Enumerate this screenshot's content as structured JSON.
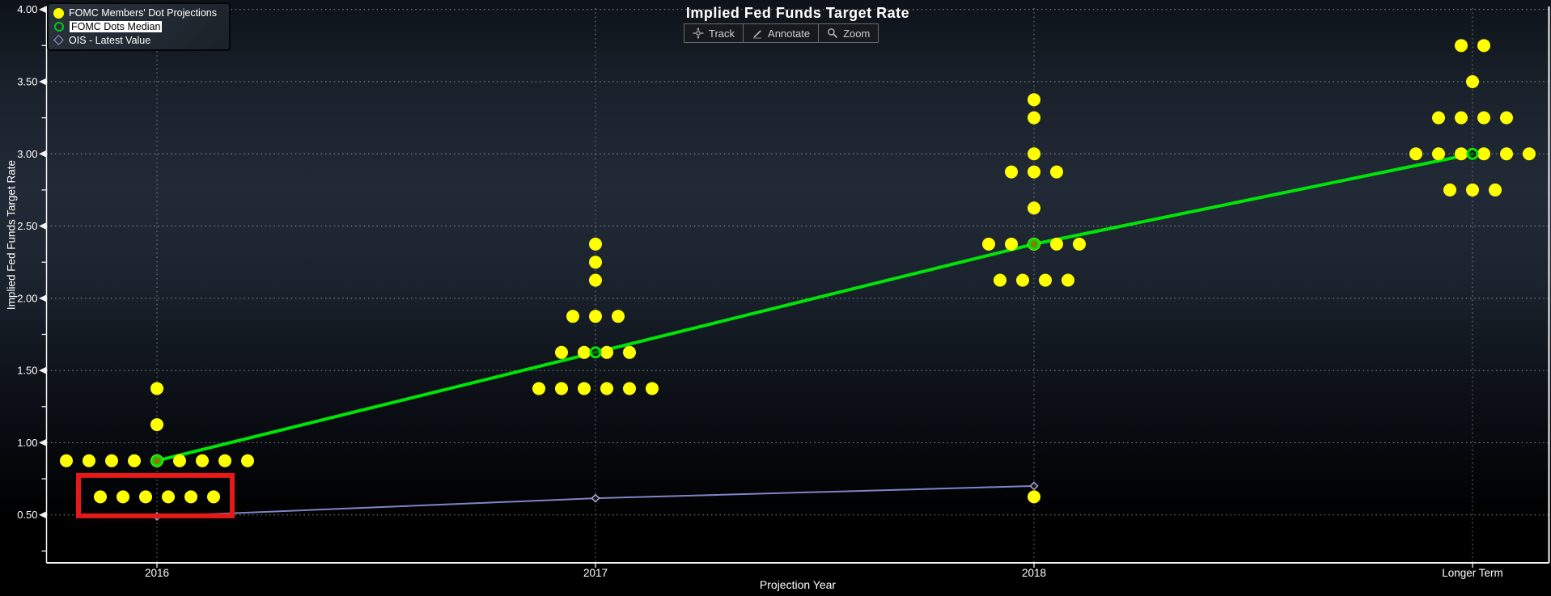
{
  "chart": {
    "title": "Implied Fed Funds Target Rate",
    "toolbar": [
      {
        "id": "track",
        "label": "Track"
      },
      {
        "id": "annotate",
        "label": "Annotate"
      },
      {
        "id": "zoom",
        "label": "Zoom"
      }
    ],
    "legend_items": [
      {
        "label": "FOMC Members' Dot Projections",
        "marker": "yellow-dot",
        "highlighted": false
      },
      {
        "label": "FOMC Dots Median",
        "marker": "green-open-circle",
        "highlighted": true
      },
      {
        "label": "OIS - Latest Value",
        "marker": "purple-open-diamond",
        "highlighted": false
      }
    ],
    "y_axis": {
      "label": "Implied Fed Funds Target Rate"
    },
    "x_axis": {
      "label": "Projection Year"
    },
    "colors": {
      "dots": "#ffff00",
      "median_line": "#00e408",
      "ois_line": "#8084c8",
      "highlight_box": "#e61919",
      "gridline": "#b9bdc2",
      "axis": "#f2f2f2",
      "text": "#ffffff"
    }
  },
  "chart_data": {
    "type": "scatter",
    "title": "Implied Fed Funds Target Rate",
    "xlabel": "Projection Year",
    "ylabel": "Implied Fed Funds Target Rate",
    "categories": [
      "2016",
      "2017",
      "2018",
      "Longer Term"
    ],
    "ylim": [
      0.16,
      4.02
    ],
    "yticks": [
      0.5,
      1.0,
      1.5,
      2.0,
      2.5,
      3.0,
      3.5,
      4.0
    ],
    "y_minor_ticks": [
      0.25,
      0.75,
      1.25,
      1.75,
      2.25,
      2.75,
      3.25,
      3.75
    ],
    "grid": true,
    "legend_position": "top-left",
    "series": [
      {
        "name": "FOMC Members' Dot Projections",
        "style": "dot-rows",
        "color": "#ffff00",
        "rows": {
          "2016": [
            [
              0.625,
              6
            ],
            [
              0.875,
              9
            ],
            [
              1.125,
              1
            ],
            [
              1.375,
              1
            ]
          ],
          "2017": [
            [
              1.375,
              6
            ],
            [
              1.625,
              4
            ],
            [
              1.875,
              3
            ],
            [
              2.125,
              1
            ],
            [
              2.25,
              1
            ],
            [
              2.375,
              1
            ]
          ],
          "2018": [
            [
              0.625,
              1
            ],
            [
              2.125,
              4
            ],
            [
              2.375,
              5
            ],
            [
              2.625,
              1
            ],
            [
              2.875,
              3
            ],
            [
              3.0,
              1
            ],
            [
              3.25,
              1
            ],
            [
              3.375,
              1
            ]
          ],
          "Longer Term": [
            [
              2.75,
              3
            ],
            [
              3.0,
              6
            ],
            [
              3.25,
              4
            ],
            [
              3.5,
              1
            ],
            [
              3.75,
              2
            ]
          ]
        }
      },
      {
        "name": "FOMC Dots Median",
        "style": "line-with-open-circle-markers",
        "color": "#00e408",
        "categories": [
          "2016",
          "2017",
          "2018",
          "Longer Term"
        ],
        "values": [
          0.875,
          1.625,
          2.375,
          3.0
        ]
      },
      {
        "name": "OIS - Latest Value",
        "style": "line-with-open-diamond-markers",
        "color": "#8084c8",
        "categories": [
          "2016",
          "2017",
          "2018"
        ],
        "values": [
          0.49,
          0.615,
          0.7
        ]
      }
    ],
    "annotations": [
      {
        "type": "highlight-box",
        "color": "#e61919",
        "category": "2016",
        "around_value": 0.625,
        "note": "red box around the six 0.625 dots of 2016"
      }
    ]
  }
}
